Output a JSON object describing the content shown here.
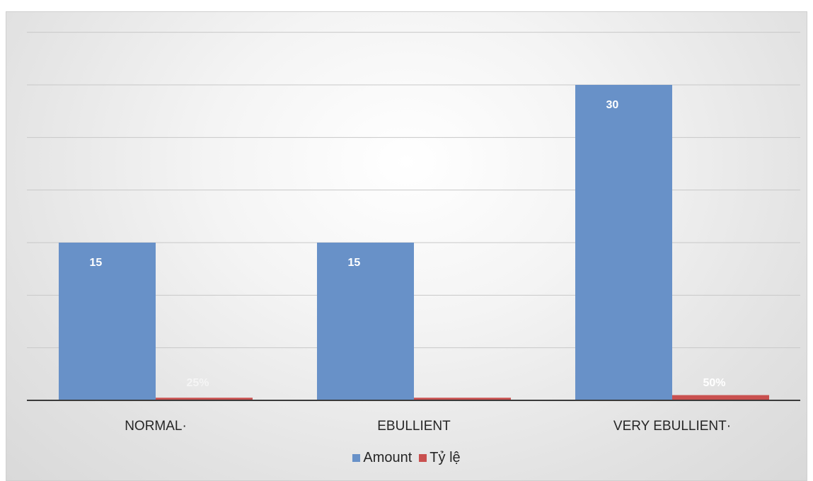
{
  "chart_data": {
    "type": "bar",
    "categories": [
      "NORMAL·",
      "EBULLIENT",
      "VERY EBULLIENT·"
    ],
    "series": [
      {
        "name": "Amount",
        "values": [
          15,
          15,
          30
        ],
        "labels": [
          "15",
          "15",
          "30"
        ],
        "color": "#6891c8"
      },
      {
        "name": "Tỷ lệ",
        "values": [
          0.25,
          0.25,
          0.5
        ],
        "labels": [
          "25%",
          "",
          "50%"
        ],
        "color": "#c9504f"
      }
    ],
    "ylim": [
      0,
      30
    ],
    "grid": true,
    "legend": "bottom"
  }
}
